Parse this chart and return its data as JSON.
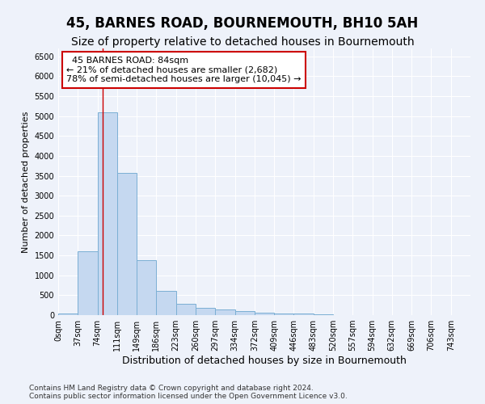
{
  "title": "45, BARNES ROAD, BOURNEMOUTH, BH10 5AH",
  "subtitle": "Size of property relative to detached houses in Bournemouth",
  "xlabel": "Distribution of detached houses by size in Bournemouth",
  "ylabel": "Number of detached properties",
  "footer_line1": "Contains HM Land Registry data © Crown copyright and database right 2024.",
  "footer_line2": "Contains public sector information licensed under the Open Government Licence v3.0.",
  "bar_labels": [
    "0sqm",
    "37sqm",
    "74sqm",
    "111sqm",
    "149sqm",
    "186sqm",
    "223sqm",
    "260sqm",
    "297sqm",
    "334sqm",
    "372sqm",
    "409sqm",
    "446sqm",
    "483sqm",
    "520sqm",
    "557sqm",
    "594sqm",
    "632sqm",
    "669sqm",
    "706sqm",
    "743sqm"
  ],
  "bar_values": [
    50,
    1600,
    5100,
    3570,
    1380,
    600,
    280,
    190,
    145,
    95,
    60,
    50,
    50,
    30,
    10,
    0,
    0,
    0,
    0,
    0,
    0
  ],
  "bar_color": "#c5d8f0",
  "bar_edge_color": "#7bafd4",
  "ylim_max": 6700,
  "yticks": [
    0,
    500,
    1000,
    1500,
    2000,
    2500,
    3000,
    3500,
    4000,
    4500,
    5000,
    5500,
    6000,
    6500
  ],
  "property_label": "45 BARNES ROAD: 84sqm",
  "annotation_line1": "← 21% of detached houses are smaller (2,682)",
  "annotation_line2": "78% of semi-detached houses are larger (10,045) →",
  "vline_x": 84,
  "vline_color": "#cc0000",
  "annotation_box_facecolor": "#ffffff",
  "annotation_box_edgecolor": "#cc0000",
  "background_color": "#eef2fa",
  "grid_color": "#ffffff",
  "title_fontsize": 12,
  "subtitle_fontsize": 10,
  "xlabel_fontsize": 9,
  "ylabel_fontsize": 8,
  "tick_fontsize": 7,
  "annotation_fontsize": 8,
  "footer_fontsize": 6.5
}
